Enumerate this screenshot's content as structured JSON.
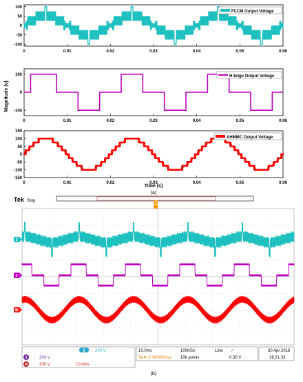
{
  "colors": {
    "cyan": "#1fc0c0",
    "magenta": "#c000c0",
    "red": "#ff0000",
    "scope_bg": "#ffffff",
    "status_cyan": "#2aa9c9"
  },
  "chart_data": [
    {
      "type": "line",
      "legend": "FCCM Output Voltage",
      "legend_position": "top-right",
      "color": "#1fc0c0",
      "xlim": [
        0,
        0.06
      ],
      "ylim": [
        -110,
        110
      ],
      "xticks": [
        "0",
        "0.01",
        "0.02",
        "0.03",
        "0.04",
        "0.05",
        "0.06"
      ],
      "yticks": [
        "100",
        "50",
        "0",
        "-50",
        "-100"
      ],
      "yticks_values": [
        100,
        50,
        0,
        -50,
        -100
      ],
      "frequency_hz": 50,
      "levels": [
        -100,
        -50,
        0,
        50,
        100
      ],
      "amplitude": 50
    },
    {
      "type": "line",
      "legend": "H-brige Output Voltage",
      "legend_position": "top-right",
      "color": "#c000c0",
      "xlim": [
        0,
        0.06
      ],
      "ylim": [
        -130,
        130
      ],
      "xticks": [
        "0",
        "0.01",
        "0.02",
        "0.03",
        "0.04",
        "0.05",
        "0.06"
      ],
      "yticks": [
        "100",
        "0",
        "-100"
      ],
      "yticks_values": [
        100,
        0,
        -100
      ],
      "ylabel": "Magnitude (v)",
      "levels": [
        -100,
        0,
        100
      ],
      "pulses": [
        {
          "start": 0.0015,
          "end": 0.0075,
          "value": 100
        },
        {
          "start": 0.0125,
          "end": 0.0175,
          "value": -100
        },
        {
          "start": 0.0225,
          "end": 0.0275,
          "value": 100
        },
        {
          "start": 0.0325,
          "end": 0.0375,
          "value": -100
        },
        {
          "start": 0.0425,
          "end": 0.0475,
          "value": 100
        },
        {
          "start": 0.0525,
          "end": 0.0575,
          "value": -100
        }
      ]
    },
    {
      "type": "line",
      "legend": "AHMMC Output Voltage",
      "legend_position": "top-right",
      "color": "#ff0000",
      "xlim": [
        0,
        0.06
      ],
      "ylim": [
        -150,
        150
      ],
      "xticks": [
        "0",
        "0.01",
        "0.02",
        "0.03",
        "0.04",
        "0.05",
        "0.06"
      ],
      "yticks": [
        "150",
        "100",
        "50",
        "0",
        "-50",
        "-100",
        "-150"
      ],
      "yticks_values": [
        150,
        100,
        50,
        0,
        -50,
        -100,
        -150
      ],
      "xlabel": "Time (s)",
      "frequency_hz": 50,
      "amplitude": 100,
      "step": 25
    }
  ],
  "caption_a": "(a)",
  "caption_b": "(b)",
  "scope": {
    "brand": "Tek",
    "state": "Stop",
    "trigger_marker": "T",
    "channel_markers": [
      "2",
      "3",
      "M"
    ],
    "status": {
      "ch2_label": "2",
      "ch2_value": "200 V",
      "ch3_label": "3",
      "ch3_value": "200 V",
      "math_label": "M",
      "math_value": "200 V",
      "math_time": "10.0ms",
      "timebase": "10.0ms",
      "sample_rate": "100kS/s",
      "record": "10k points",
      "trigger_pos": "T▸▼-2.300000ms",
      "trig_source": "Line",
      "trig_slope": "∕",
      "trig_level": "0.00 V",
      "date": "30 Apr 2018",
      "time": "19:21:33"
    }
  }
}
